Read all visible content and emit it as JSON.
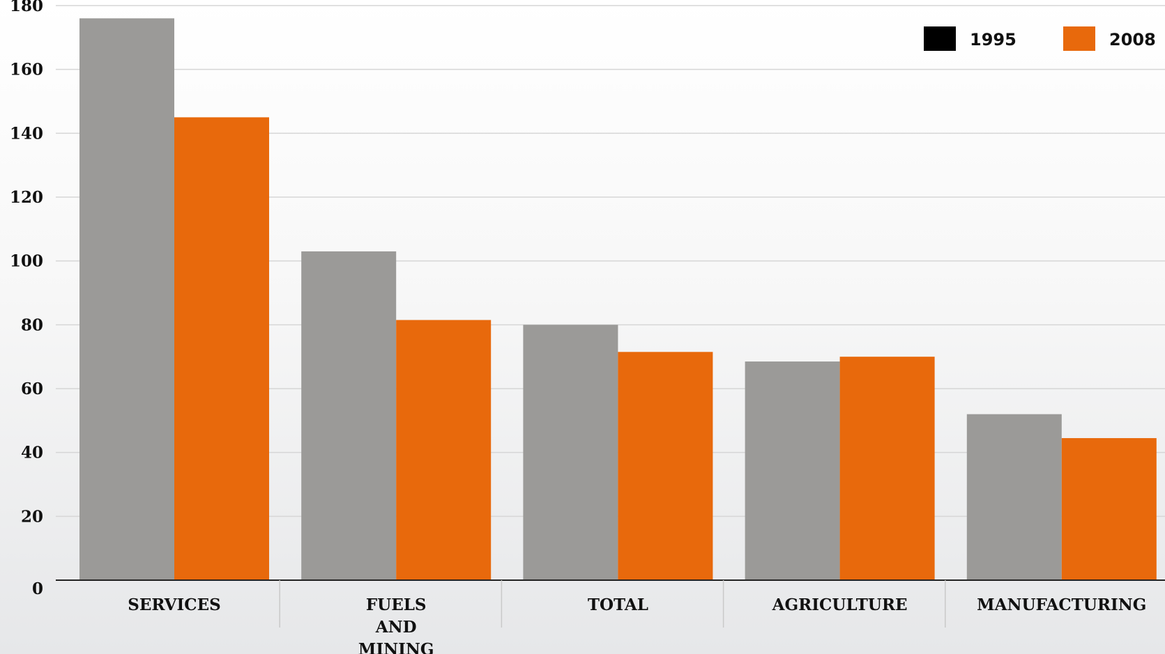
{
  "chart_data": {
    "type": "bar",
    "categories": [
      [
        "SERVICES"
      ],
      [
        "FUELS",
        "AND",
        "MINING"
      ],
      [
        "TOTAL"
      ],
      [
        "AGRICULTURE"
      ],
      [
        "MANUFACTURING"
      ]
    ],
    "series": [
      {
        "name": "1995",
        "values": [
          176,
          103,
          80,
          68.5,
          52
        ],
        "color": "#9b9a98",
        "legend_color": "#000000"
      },
      {
        "name": "2008",
        "values": [
          145,
          81.5,
          71.5,
          70,
          44.5
        ],
        "color": "#e8690c",
        "legend_color": "#e8690c"
      }
    ],
    "yticks": [
      0,
      20,
      40,
      60,
      80,
      100,
      120,
      140,
      160,
      180
    ],
    "ylim": [
      0,
      180
    ],
    "title": "",
    "xlabel": "",
    "ylabel": "",
    "grid": true,
    "legend_position": "top-right"
  }
}
